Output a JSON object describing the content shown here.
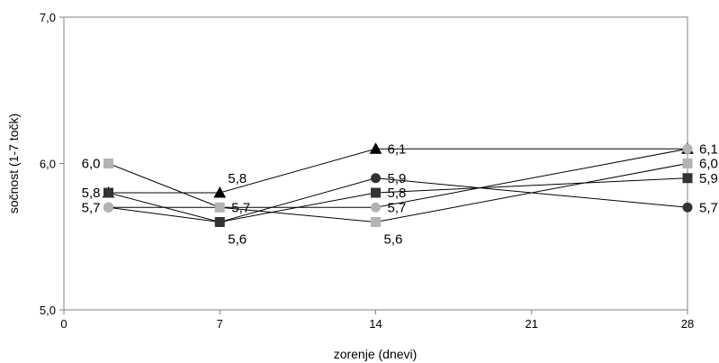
{
  "chart_data": {
    "type": "line",
    "title": "",
    "xlabel": "zorenje (dnevi)",
    "ylabel": "sočnost (1-7 točk)",
    "xlim": [
      0,
      28
    ],
    "ylim": [
      5.0,
      7.0
    ],
    "x_ticks": [
      "0",
      "7",
      "14",
      "21",
      "28"
    ],
    "y_ticks": [
      "5,0",
      "6,0",
      "7,0"
    ],
    "grid": false,
    "legend": "none",
    "x": [
      2,
      7,
      14,
      28
    ],
    "series": [
      {
        "marker": "triangle",
        "color": "#000000",
        "values": [
          5.8,
          5.8,
          6.1,
          6.1
        ]
      },
      {
        "marker": "circle",
        "color": "#333333",
        "values": [
          5.7,
          5.6,
          5.9,
          5.7
        ]
      },
      {
        "marker": "square",
        "color": "#333333",
        "values": [
          5.8,
          5.6,
          5.8,
          5.9
        ]
      },
      {
        "marker": "square",
        "color": "#b3b3b3",
        "values": [
          6.0,
          5.7,
          5.6,
          6.0
        ]
      },
      {
        "marker": "circle",
        "color": "#b3b3b3",
        "values": [
          5.7,
          5.7,
          5.7,
          6.1
        ]
      }
    ],
    "data_labels": [
      {
        "x": 2,
        "y": 6.0,
        "text": "6,0",
        "side": "left"
      },
      {
        "x": 2,
        "y": 5.8,
        "text": "5,8",
        "side": "left"
      },
      {
        "x": 2,
        "y": 5.7,
        "text": "5,7",
        "side": "left"
      },
      {
        "x": 7,
        "y": 5.8,
        "text": "5,8",
        "side": "above"
      },
      {
        "x": 7,
        "y": 5.7,
        "text": "5,7",
        "side": "right"
      },
      {
        "x": 7,
        "y": 5.6,
        "text": "5,6",
        "side": "below"
      },
      {
        "x": 14,
        "y": 6.1,
        "text": "6,1",
        "side": "right"
      },
      {
        "x": 14,
        "y": 5.9,
        "text": "5,9",
        "side": "right"
      },
      {
        "x": 14,
        "y": 5.8,
        "text": "5,8",
        "side": "right"
      },
      {
        "x": 14,
        "y": 5.7,
        "text": "5,7",
        "side": "right"
      },
      {
        "x": 14,
        "y": 5.6,
        "text": "5,6",
        "side": "below"
      },
      {
        "x": 28,
        "y": 6.1,
        "text": "6,1",
        "side": "right"
      },
      {
        "x": 28,
        "y": 6.0,
        "text": "6,0",
        "side": "right"
      },
      {
        "x": 28,
        "y": 5.9,
        "text": "5,9",
        "side": "right"
      },
      {
        "x": 28,
        "y": 5.7,
        "text": "5,7",
        "side": "right"
      }
    ]
  }
}
